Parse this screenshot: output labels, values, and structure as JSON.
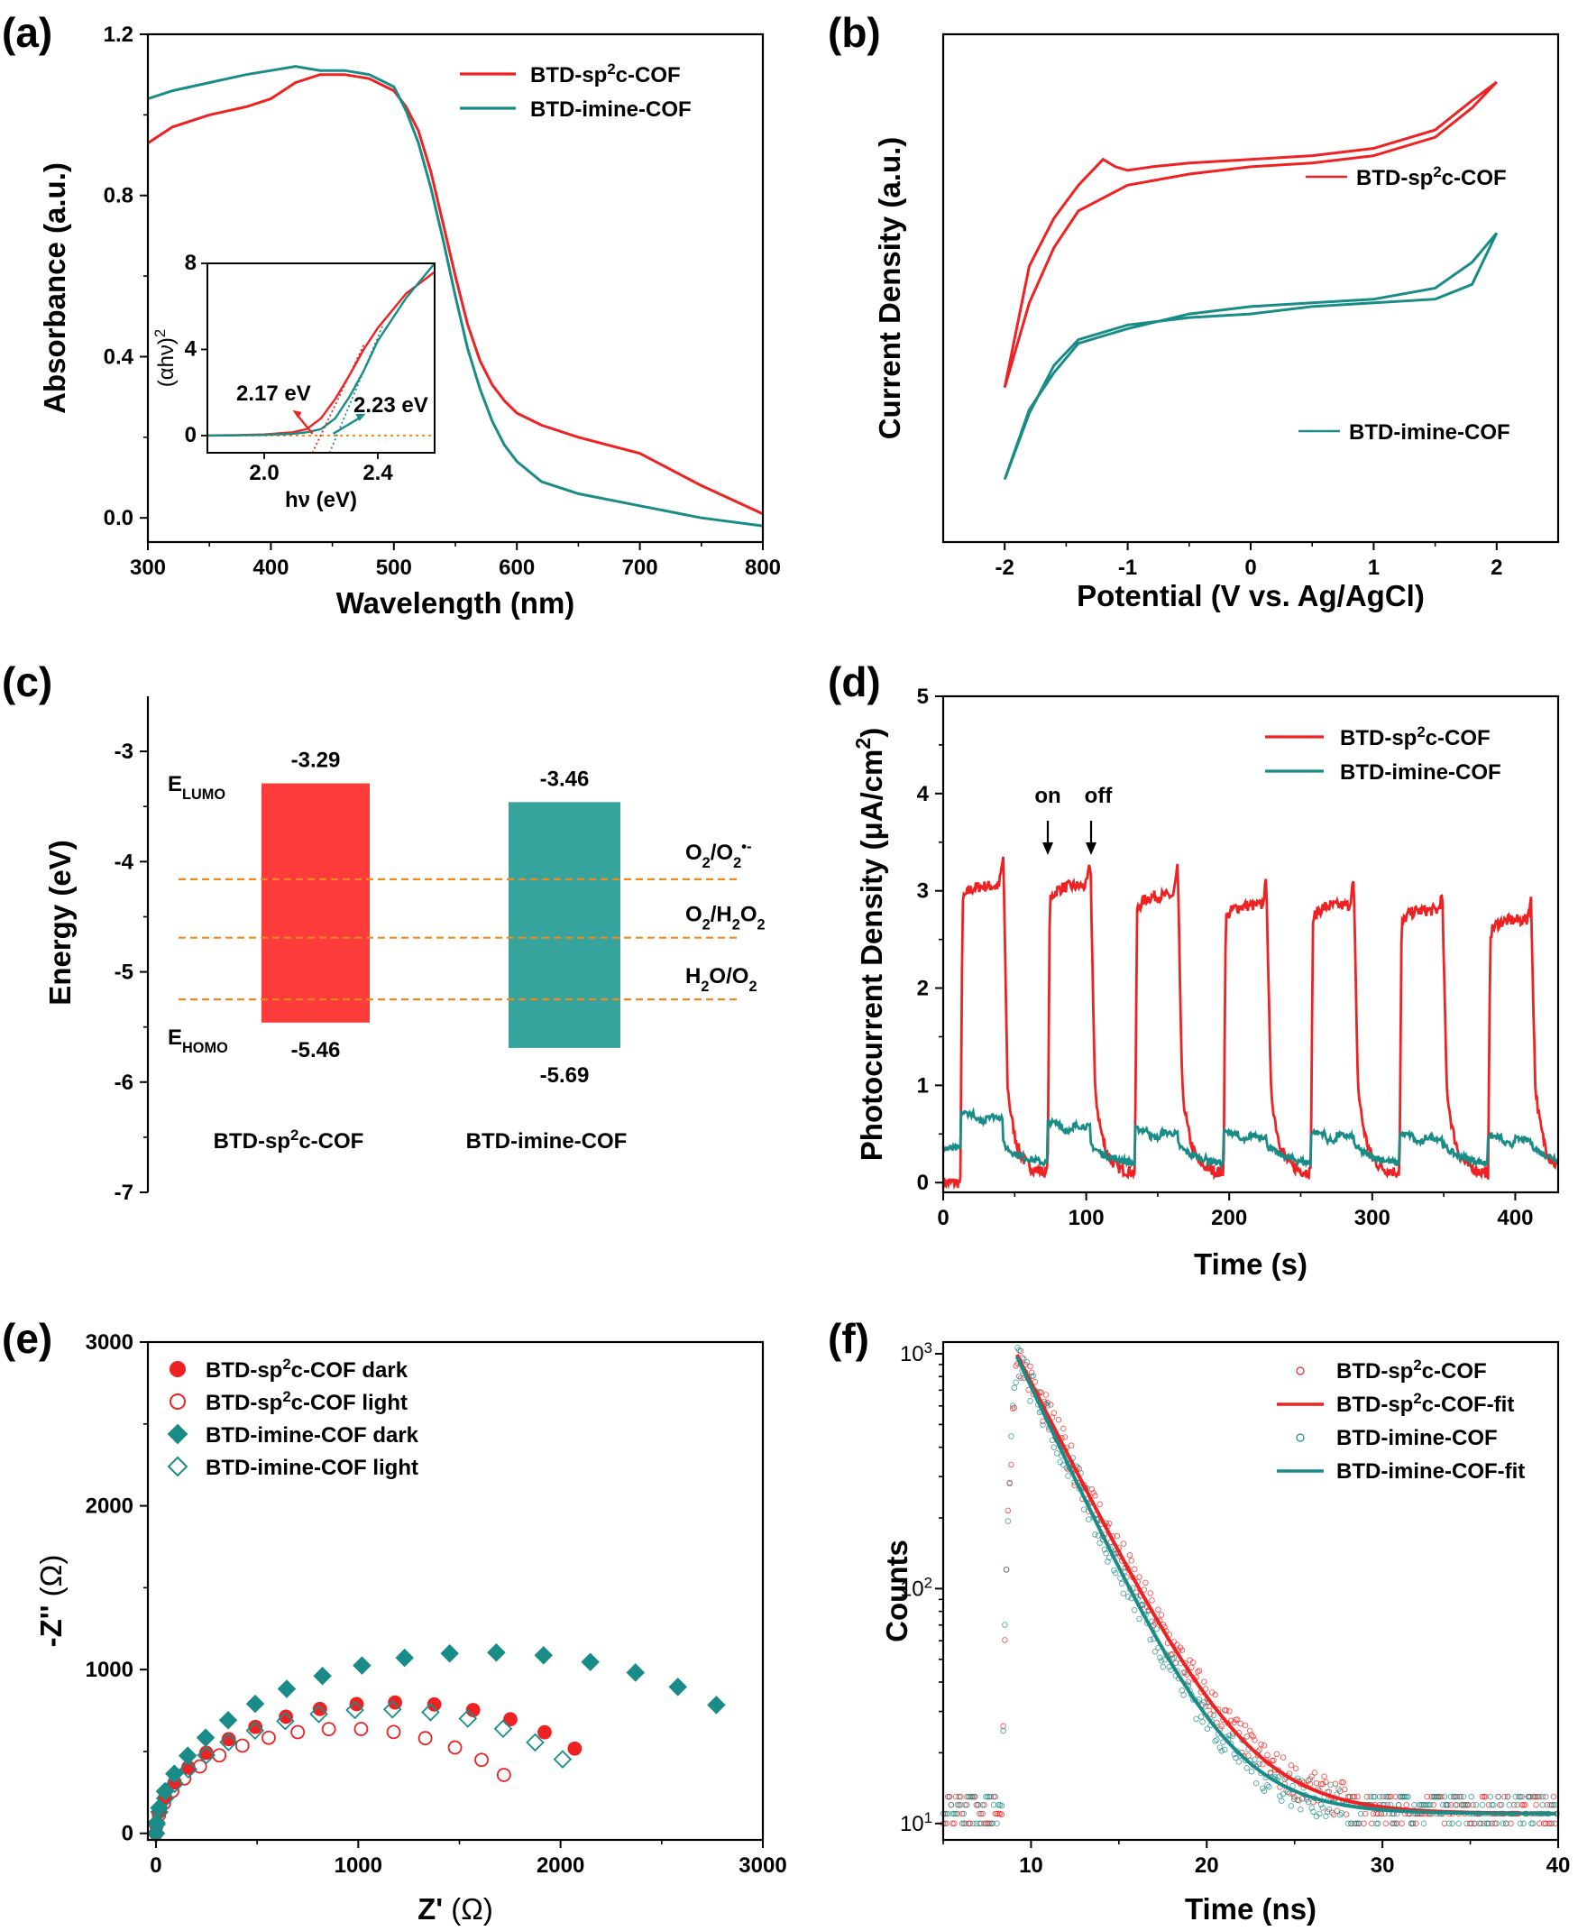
{
  "colors": {
    "red": "#ee2222",
    "teal": "#1a8c87",
    "orange": "#f08a1c"
  },
  "chart_data": [
    {
      "panel": "(a)",
      "type": "line",
      "xlabel": "Wavelength (nm)",
      "ylabel": "Absorbance (a.u.)",
      "xlim": [
        300,
        800
      ],
      "ylim": [
        -0.06,
        1.2
      ],
      "xticks": [
        "300",
        "400",
        "500",
        "600",
        "700",
        "800"
      ],
      "yticks": [
        "0.0",
        "0.4",
        "0.8",
        "1.2"
      ],
      "series": [
        {
          "name": "BTD-sp2c-COF",
          "x": [
            300,
            320,
            350,
            380,
            400,
            420,
            440,
            460,
            480,
            500,
            510,
            520,
            530,
            540,
            550,
            560,
            570,
            580,
            590,
            600,
            620,
            650,
            700,
            750,
            800
          ],
          "y": [
            0.93,
            0.97,
            1.0,
            1.02,
            1.04,
            1.08,
            1.1,
            1.1,
            1.09,
            1.06,
            1.02,
            0.96,
            0.86,
            0.73,
            0.6,
            0.48,
            0.39,
            0.33,
            0.29,
            0.26,
            0.23,
            0.2,
            0.16,
            0.08,
            0.01
          ]
        },
        {
          "name": "BTD-imine-COF",
          "x": [
            300,
            320,
            350,
            380,
            400,
            420,
            440,
            460,
            480,
            500,
            510,
            520,
            530,
            540,
            550,
            560,
            570,
            580,
            590,
            600,
            620,
            650,
            700,
            750,
            800
          ],
          "y": [
            1.04,
            1.06,
            1.08,
            1.1,
            1.11,
            1.12,
            1.11,
            1.11,
            1.1,
            1.07,
            1.01,
            0.93,
            0.82,
            0.69,
            0.55,
            0.42,
            0.32,
            0.24,
            0.18,
            0.14,
            0.09,
            0.06,
            0.03,
            0.0,
            -0.02
          ]
        }
      ],
      "inset": {
        "xlabel": "hν (eV)",
        "ylabel": "(αhν)²",
        "xlim": [
          1.8,
          2.6
        ],
        "ylim": [
          -0.8,
          8
        ],
        "xticks": [
          "2.0",
          "2.4"
        ],
        "yticks": [
          "0",
          "4",
          "8"
        ],
        "series": [
          {
            "name": "BTD-sp2c-COF",
            "x": [
              1.8,
              1.9,
              2.0,
              2.1,
              2.15,
              2.2,
              2.25,
              2.3,
              2.35,
              2.4,
              2.5,
              2.6
            ],
            "y": [
              0,
              0.02,
              0.05,
              0.15,
              0.3,
              0.8,
              1.7,
              2.8,
              4.0,
              5.0,
              6.6,
              7.6
            ]
          },
          {
            "name": "BTD-imine-COF",
            "x": [
              1.8,
              1.9,
              2.0,
              2.1,
              2.15,
              2.2,
              2.25,
              2.3,
              2.35,
              2.4,
              2.5,
              2.6
            ],
            "y": [
              0,
              0.01,
              0.03,
              0.08,
              0.15,
              0.3,
              0.8,
              1.8,
              3.0,
              4.4,
              6.4,
              8.0
            ]
          }
        ],
        "annotations": [
          "2.17 eV",
          "2.23 eV"
        ]
      },
      "legend": [
        "BTD-sp2c-COF",
        "BTD-imine-COF"
      ]
    },
    {
      "panel": "(b)",
      "type": "line",
      "xlabel": "Potential (V vs. Ag/AgCl)",
      "ylabel": "Current Density (a.u.)",
      "xlim": [
        -2.5,
        2.5
      ],
      "xticks": [
        "-2",
        "-1",
        "0",
        "1",
        "2"
      ],
      "series": [
        {
          "name": "BTD-sp2c-COF",
          "x": [
            -2.0,
            -1.8,
            -1.6,
            -1.4,
            -1.2,
            -1.1,
            -1.0,
            -0.8,
            -0.5,
            0,
            0.5,
            1.0,
            1.5,
            1.8,
            2.0,
            1.8,
            1.5,
            1.0,
            0.5,
            0,
            -0.5,
            -1.0,
            -1.4,
            -1.6,
            -1.8,
            -2.0
          ],
          "y": [
            2.0,
            5.3,
            6.6,
            7.5,
            8.2,
            8.0,
            7.9,
            8.0,
            8.1,
            8.2,
            8.3,
            8.5,
            9.0,
            9.8,
            10.3,
            9.6,
            8.8,
            8.3,
            8.1,
            8.0,
            7.8,
            7.5,
            6.8,
            5.8,
            4.3,
            2.0
          ]
        },
        {
          "name": "BTD-imine-COF",
          "x": [
            -2.0,
            -1.8,
            -1.6,
            -1.4,
            -1.2,
            -1.0,
            -0.5,
            0,
            0.5,
            1.0,
            1.5,
            1.8,
            2.0,
            1.8,
            1.5,
            1.0,
            0.5,
            0,
            -0.5,
            -1.0,
            -1.4,
            -1.6,
            -1.8,
            -2.0
          ],
          "y": [
            -0.5,
            1.4,
            2.4,
            3.2,
            3.4,
            3.6,
            4.0,
            4.2,
            4.3,
            4.4,
            4.7,
            5.4,
            6.2,
            4.8,
            4.4,
            4.3,
            4.2,
            4.0,
            3.9,
            3.7,
            3.3,
            2.6,
            1.3,
            -0.5
          ]
        }
      ],
      "legend": [
        "BTD-sp2c-COF",
        "BTD-imine-COF"
      ]
    },
    {
      "panel": "(c)",
      "type": "bar",
      "ylabel": "Energy (eV)",
      "ylim": [
        -7,
        -2.5
      ],
      "yticks": [
        "-3",
        "-4",
        "-5",
        "-6",
        "-7"
      ],
      "categories": [
        "BTD-sp2c-COF",
        "BTD-imine-COF"
      ],
      "lumo": [
        -3.29,
        -3.46
      ],
      "homo": [
        -5.46,
        -5.69
      ],
      "lumo_labels": [
        "-3.29",
        "-3.46"
      ],
      "homo_labels": [
        "-5.46",
        "-5.69"
      ],
      "e_lumo": "E",
      "e_lumo_sub": "LUMO",
      "e_homo": "E",
      "e_homo_sub": "HOMO",
      "reference_levels": [
        {
          "value": -4.16,
          "label": "O2/O2•-"
        },
        {
          "value": -4.69,
          "label": "O2/H2O2"
        },
        {
          "value": -5.25,
          "label": "H2O/O2"
        }
      ]
    },
    {
      "panel": "(d)",
      "type": "line",
      "xlabel": "Time (s)",
      "ylabel": "Photocurrent Density (μA/cm²)",
      "xlim": [
        0,
        430
      ],
      "ylim": [
        -0.1,
        5
      ],
      "xticks": [
        "0",
        "100",
        "200",
        "300",
        "400"
      ],
      "yticks": [
        "0",
        "1",
        "2",
        "3",
        "4",
        "5"
      ],
      "on_times": [
        12,
        73,
        134,
        196,
        257,
        319,
        381
      ],
      "period_on_s": 30,
      "series": [
        {
          "name": "BTD-sp2c-COF",
          "on_level": [
            3.05,
            3.05,
            2.95,
            2.85,
            2.85,
            2.8,
            2.7
          ],
          "peak": [
            3.35,
            3.3,
            3.25,
            3.1,
            3.1,
            2.95,
            2.9
          ],
          "off_level": 0.1
        },
        {
          "name": "BTD-imine-COF",
          "on_level": [
            0.72,
            0.62,
            0.55,
            0.52,
            0.52,
            0.5,
            0.48
          ],
          "off_level": 0.2
        }
      ],
      "annotations": [
        "on",
        "off"
      ],
      "legend": [
        "BTD-sp2c-COF",
        "BTD-imine-COF"
      ]
    },
    {
      "panel": "(e)",
      "type": "scatter",
      "xlabel": "Z' (Ω)",
      "ylabel": "-Z'' (Ω)",
      "xlim": [
        -40,
        3000
      ],
      "ylim": [
        -40,
        3000
      ],
      "xticks": [
        "0",
        "1000",
        "2000",
        "3000"
      ],
      "yticks": [
        "0",
        "1000",
        "2000",
        "3000"
      ],
      "series": [
        {
          "name": "BTD-sp2c-COF dark",
          "semicircle": {
            "z0": 0,
            "z1": 2350,
            "xmax": 2070
          }
        },
        {
          "name": "BTD-sp2c-COF light",
          "semicircle": {
            "z0": 0,
            "z1": 1880,
            "xmax": 1720
          }
        },
        {
          "name": "BTD-imine-COF dark",
          "semicircle": {
            "z0": 0,
            "z1": 3250,
            "xmax": 2770
          }
        },
        {
          "name": "BTD-imine-COF light",
          "semicircle": {
            "z0": 0,
            "z1": 2230,
            "xmax": 2010
          }
        }
      ]
    },
    {
      "panel": "(f)",
      "type": "scatter",
      "xlabel": "Time (ns)",
      "ylabel": "Counts",
      "xlim": [
        5,
        40
      ],
      "ylim_log10": [
        0.93,
        3.05
      ],
      "xticks": [
        "10",
        "20",
        "30",
        "40"
      ],
      "yticks": [
        {
          "base": "10",
          "exp": "1"
        },
        {
          "base": "10",
          "exp": "2"
        },
        {
          "base": "10",
          "exp": "3"
        }
      ],
      "series": [
        {
          "name": "BTD-sp2c-COF",
          "peak_t": 9.2,
          "peak": 980,
          "tau": 2.9,
          "baseline": 11
        },
        {
          "name": "BTD-sp2c-COF-fit",
          "tau": 2.9
        },
        {
          "name": "BTD-imine-COF",
          "peak_t": 9.2,
          "peak": 960,
          "tau": 2.7,
          "baseline": 11
        },
        {
          "name": "BTD-imine-COF-fit",
          "tau": 2.7
        }
      ]
    }
  ]
}
